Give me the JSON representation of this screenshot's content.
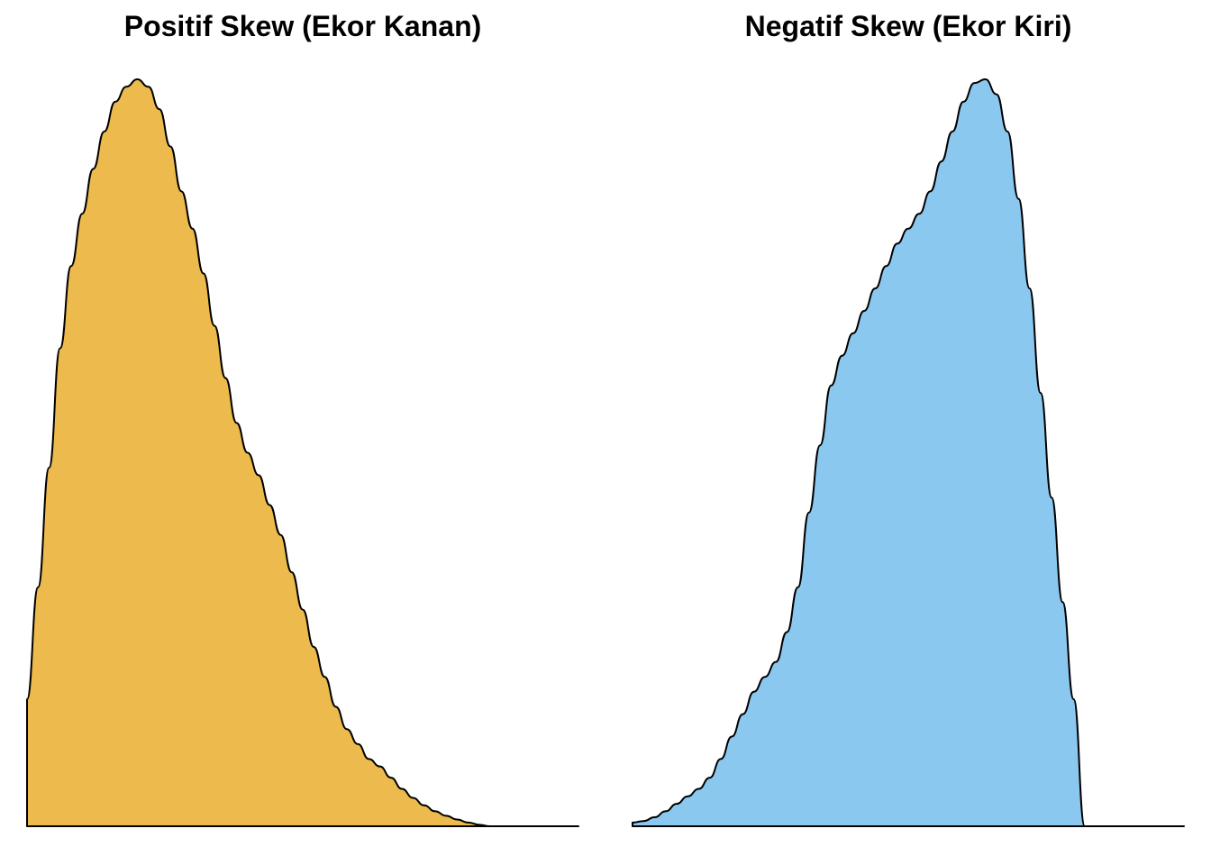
{
  "chart_data": [
    {
      "type": "area",
      "title": "Positif Skew (Ekor Kanan)",
      "xlabel": "",
      "ylabel": "",
      "grid": false,
      "legend": "none",
      "axes": false,
      "fill_color": "#EDBB4D",
      "line_color": "#000000",
      "xlim": [
        0,
        1
      ],
      "ylim": [
        0,
        1
      ],
      "x": [
        0.0,
        0.02,
        0.04,
        0.06,
        0.08,
        0.1,
        0.12,
        0.14,
        0.16,
        0.18,
        0.2,
        0.22,
        0.24,
        0.26,
        0.28,
        0.3,
        0.32,
        0.34,
        0.36,
        0.38,
        0.4,
        0.42,
        0.44,
        0.46,
        0.48,
        0.5,
        0.52,
        0.54,
        0.56,
        0.58,
        0.6,
        0.62,
        0.64,
        0.66,
        0.68,
        0.7,
        0.72,
        0.74,
        0.76,
        0.78,
        0.8,
        0.82,
        0.84,
        0.86,
        0.88,
        0.9,
        0.92,
        0.94,
        0.96,
        0.98,
        1.0
      ],
      "y": [
        0.17,
        0.32,
        0.48,
        0.64,
        0.75,
        0.82,
        0.88,
        0.93,
        0.97,
        0.99,
        1.0,
        0.99,
        0.96,
        0.91,
        0.85,
        0.8,
        0.74,
        0.67,
        0.6,
        0.54,
        0.5,
        0.47,
        0.43,
        0.39,
        0.34,
        0.29,
        0.24,
        0.2,
        0.16,
        0.13,
        0.11,
        0.09,
        0.08,
        0.065,
        0.05,
        0.038,
        0.028,
        0.02,
        0.014,
        0.009,
        0.005,
        0.002,
        0.0,
        0.0,
        0.0,
        0.0,
        0.0,
        0.0,
        0.0,
        0.0,
        0.0
      ]
    },
    {
      "type": "area",
      "title": "Negatif Skew (Ekor Kiri)",
      "xlabel": "",
      "ylabel": "",
      "grid": false,
      "legend": "none",
      "axes": false,
      "fill_color": "#8BC8EF",
      "line_color": "#000000",
      "xlim": [
        0,
        1
      ],
      "ylim": [
        0,
        1
      ],
      "x": [
        0.0,
        0.02,
        0.04,
        0.06,
        0.08,
        0.1,
        0.12,
        0.14,
        0.16,
        0.18,
        0.2,
        0.22,
        0.24,
        0.26,
        0.28,
        0.3,
        0.32,
        0.34,
        0.36,
        0.38,
        0.4,
        0.42,
        0.44,
        0.46,
        0.48,
        0.5,
        0.52,
        0.54,
        0.56,
        0.58,
        0.6,
        0.62,
        0.64,
        0.66,
        0.68,
        0.7,
        0.72,
        0.74,
        0.76,
        0.78,
        0.8,
        0.82,
        0.84,
        0.86,
        0.88,
        0.9,
        0.92,
        0.94,
        0.96,
        0.98,
        1.0
      ],
      "y": [
        0.005,
        0.007,
        0.012,
        0.02,
        0.03,
        0.04,
        0.05,
        0.065,
        0.09,
        0.12,
        0.15,
        0.18,
        0.2,
        0.22,
        0.26,
        0.32,
        0.42,
        0.51,
        0.59,
        0.63,
        0.66,
        0.69,
        0.72,
        0.75,
        0.78,
        0.8,
        0.82,
        0.85,
        0.89,
        0.93,
        0.97,
        0.995,
        1.0,
        0.98,
        0.93,
        0.84,
        0.72,
        0.58,
        0.44,
        0.3,
        0.17,
        0.0,
        0.0,
        0.0,
        0.0,
        0.0,
        0.0,
        0.0,
        0.0,
        0.0,
        0.0
      ]
    }
  ]
}
